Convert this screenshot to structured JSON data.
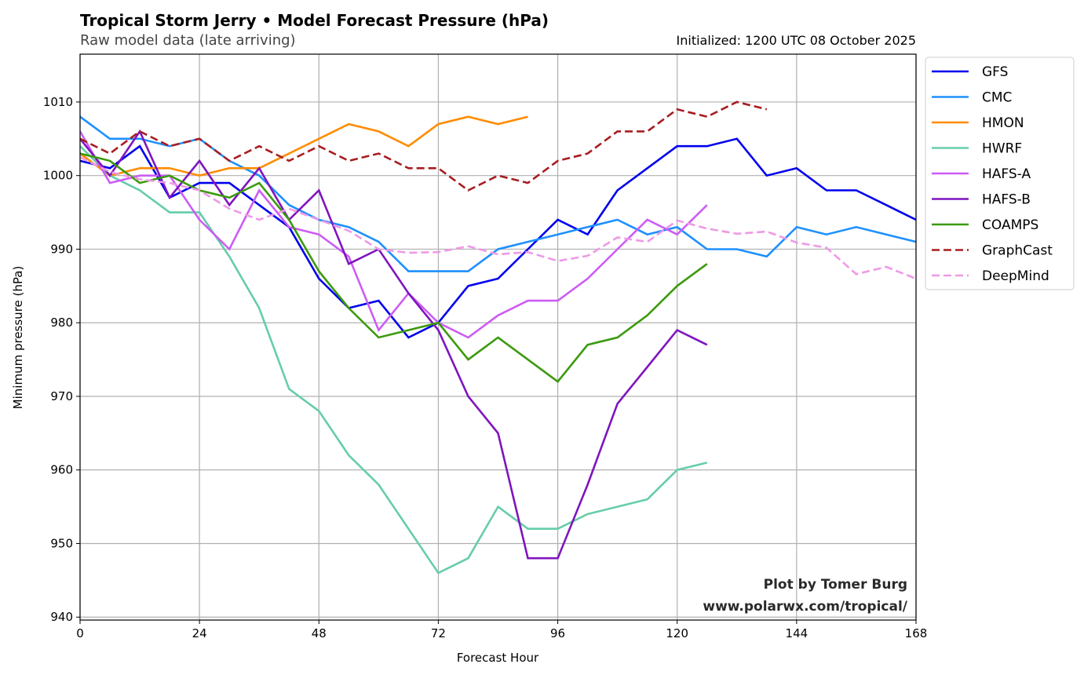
{
  "chart_data": {
    "type": "line",
    "title": "Tropical Storm Jerry • Model Forecast Pressure (hPa)",
    "subtitle": "Raw model data (late arriving)",
    "initialized": "Initialized: 1200 UTC 08 October 2025",
    "xlabel": "Forecast Hour",
    "ylabel": "Minimum pressure (hPa)",
    "xlim": [
      0,
      168
    ],
    "ylim": [
      939.6,
      1016.5
    ],
    "xticks": [
      0,
      24,
      48,
      72,
      96,
      120,
      144,
      168
    ],
    "yticks": [
      940,
      950,
      960,
      970,
      980,
      990,
      1000,
      1010
    ],
    "grid": true,
    "legend_position": "outside-top-right",
    "credit_line1": "Plot by Tomer Burg",
    "credit_line2": "www.polarwx.com/tropical/",
    "series": [
      {
        "name": "GFS",
        "color": "#0000ee",
        "dash": "solid",
        "x": [
          0,
          6,
          12,
          18,
          24,
          30,
          36,
          42,
          48,
          54,
          60,
          66,
          72,
          78,
          84,
          90,
          96,
          102,
          108,
          114,
          120,
          126,
          132,
          138,
          144,
          150,
          156,
          162,
          168
        ],
        "y": [
          1002,
          1001,
          1004,
          997,
          999,
          999,
          996,
          993,
          986,
          982,
          983,
          978,
          980,
          985,
          986,
          990,
          994,
          992,
          998,
          1001,
          1004,
          1004,
          1005,
          1000,
          1001,
          998,
          998,
          996,
          994
        ]
      },
      {
        "name": "CMC",
        "color": "#1e90ff",
        "dash": "solid",
        "x": [
          0,
          6,
          12,
          18,
          24,
          30,
          36,
          42,
          48,
          54,
          60,
          66,
          72,
          78,
          84,
          90,
          96,
          102,
          108,
          114,
          120,
          126,
          132,
          138,
          144,
          150,
          156,
          162,
          168
        ],
        "y": [
          1008,
          1005,
          1005,
          1004,
          1005,
          1002,
          1000,
          996,
          994,
          993,
          991,
          987,
          987,
          987,
          990,
          991,
          992,
          993,
          994,
          992,
          993,
          990,
          990,
          989,
          993,
          992,
          993,
          992,
          991
        ]
      },
      {
        "name": "HMON",
        "color": "#ff8c00",
        "dash": "solid",
        "x": [
          0,
          6,
          12,
          18,
          24,
          30,
          36,
          42,
          48,
          54,
          60,
          66,
          72,
          78,
          84,
          90
        ],
        "y": [
          1003,
          1000,
          1001,
          1001,
          1000,
          1001,
          1001,
          1003,
          1005,
          1007,
          1006,
          1004,
          1007,
          1008,
          1007,
          1008
        ]
      },
      {
        "name": "HWRF",
        "color": "#66cdaa",
        "dash": "solid",
        "x": [
          0,
          6,
          12,
          18,
          24,
          30,
          36,
          42,
          48,
          54,
          60,
          66,
          72,
          78,
          84,
          90,
          96,
          102,
          108,
          114,
          120,
          126
        ],
        "y": [
          1004,
          1000,
          998,
          995,
          995,
          989,
          982,
          971,
          968,
          962,
          958,
          952,
          946,
          948,
          955,
          952,
          952,
          954,
          955,
          956,
          960,
          961
        ]
      },
      {
        "name": "HAFS-A",
        "color": "#cc5cf5",
        "dash": "solid",
        "x": [
          0,
          6,
          12,
          18,
          24,
          30,
          36,
          42,
          48,
          54,
          60,
          66,
          72,
          78,
          84,
          90,
          96,
          102,
          108,
          114,
          120,
          126
        ],
        "y": [
          1006,
          999,
          1000,
          1000,
          994,
          990,
          998,
          993,
          992,
          989,
          979,
          984,
          980,
          978,
          981,
          983,
          983,
          986,
          990,
          994,
          992,
          996
        ]
      },
      {
        "name": "HAFS-B",
        "color": "#7f15bf",
        "dash": "solid",
        "x": [
          0,
          6,
          12,
          18,
          24,
          30,
          36,
          42,
          48,
          54,
          60,
          66,
          72,
          78,
          84,
          90,
          96,
          102,
          108,
          114,
          120,
          126
        ],
        "y": [
          1005,
          1000,
          1006,
          997,
          1002,
          996,
          1001,
          994,
          998,
          988,
          990,
          984,
          979,
          970,
          965,
          948,
          948,
          958,
          969,
          974,
          979,
          977
        ]
      },
      {
        "name": "COAMPS",
        "color": "#3c9a0e",
        "dash": "solid",
        "x": [
          0,
          6,
          12,
          18,
          24,
          30,
          36,
          42,
          48,
          54,
          60,
          66,
          72,
          78,
          84,
          90,
          96,
          102,
          108,
          114,
          120,
          126
        ],
        "y": [
          1003,
          1002,
          999,
          1000,
          998,
          997,
          999,
          994,
          987,
          982,
          978,
          979,
          980,
          975,
          978,
          975,
          972,
          977,
          978,
          981,
          985,
          988
        ]
      },
      {
        "name": "GraphCast",
        "color": "#a71d20",
        "dash": "dashed",
        "x": [
          0,
          6,
          12,
          18,
          24,
          30,
          36,
          42,
          48,
          54,
          60,
          66,
          72,
          78,
          84,
          90,
          96,
          102,
          108,
          114,
          120,
          126,
          132,
          138
        ],
        "y": [
          1005,
          1003,
          1006,
          1004,
          1005,
          1002,
          1004,
          1002,
          1004,
          1002,
          1003,
          1001,
          1001,
          998,
          1000,
          999,
          1002,
          1003,
          1006,
          1006,
          1009,
          1008,
          1010,
          1009
        ]
      },
      {
        "name": "DeepMind",
        "color": "#ee99e6",
        "dash": "dashed",
        "x": [
          0,
          6,
          12,
          18,
          24,
          30,
          36,
          42,
          48,
          54,
          60,
          66,
          72,
          78,
          84,
          90,
          96,
          102,
          108,
          114,
          120,
          126,
          132,
          138,
          144,
          150,
          156,
          162,
          168
        ],
        "y": [
          1002.5,
          1000.5,
          999.5,
          999,
          998,
          995.5,
          994,
          995.5,
          994,
          992.5,
          990,
          989.5,
          989.6,
          990.4,
          989.3,
          989.6,
          988.4,
          989.1,
          991.6,
          991,
          993.9,
          992.8,
          992.1,
          992.4,
          990.9,
          990.2,
          986.6,
          987.6,
          986
        ]
      }
    ]
  }
}
